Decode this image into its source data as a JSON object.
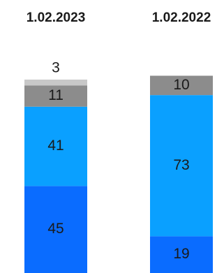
{
  "chart_data": {
    "type": "bar",
    "stacked": true,
    "categories": [
      "1.02.2023",
      "1.02.2022"
    ],
    "series": [
      {
        "values": [
          45,
          19
        ],
        "color": "#0a6cff"
      },
      {
        "values": [
          41,
          73
        ],
        "color": "#0aa0ff"
      },
      {
        "values": [
          11,
          10
        ],
        "color": "#8c8c8c"
      },
      {
        "values": [
          3,
          null
        ],
        "color": "#c8c8c8"
      }
    ],
    "title": "",
    "xlabel": "",
    "ylabel": "",
    "ylim": [
      0,
      100
    ],
    "grid": false,
    "legend": "none",
    "value_labels": true
  }
}
